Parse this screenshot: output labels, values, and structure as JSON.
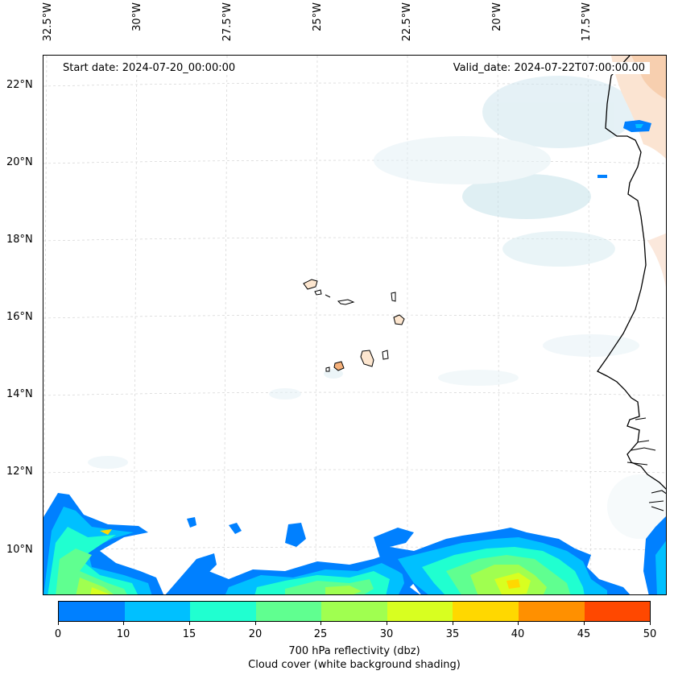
{
  "top_axis": {
    "lon_labels": [
      "32.5°W",
      "30°W",
      "27.5°W",
      "25°W",
      "22.5°W",
      "20°W",
      "17.5°W"
    ]
  },
  "left_axis": {
    "lat_labels": [
      "22°N",
      "20°N",
      "18°N",
      "16°N",
      "14°N",
      "12°N",
      "10°N"
    ]
  },
  "map": {
    "start_label": "Start date: 2024-07-20_00:00:00",
    "valid_label": "Valid_date: 2024-07-22T07:00:00.00",
    "land_fill": "#ffffff",
    "coast_color": "#000000"
  },
  "colorbar": {
    "ticks": [
      "0",
      "10",
      "15",
      "20",
      "25",
      "30",
      "35",
      "40",
      "45",
      "50"
    ],
    "colors": [
      "#0080ff",
      "#00c0ff",
      "#20ffd0",
      "#60ff90",
      "#a0ff50",
      "#d8ff20",
      "#ffd800",
      "#ff9000",
      "#ff4800"
    ],
    "title_line1": "700 hPa reflectivity (dbz)",
    "title_line2": "Cloud cover (white background shading)"
  }
}
